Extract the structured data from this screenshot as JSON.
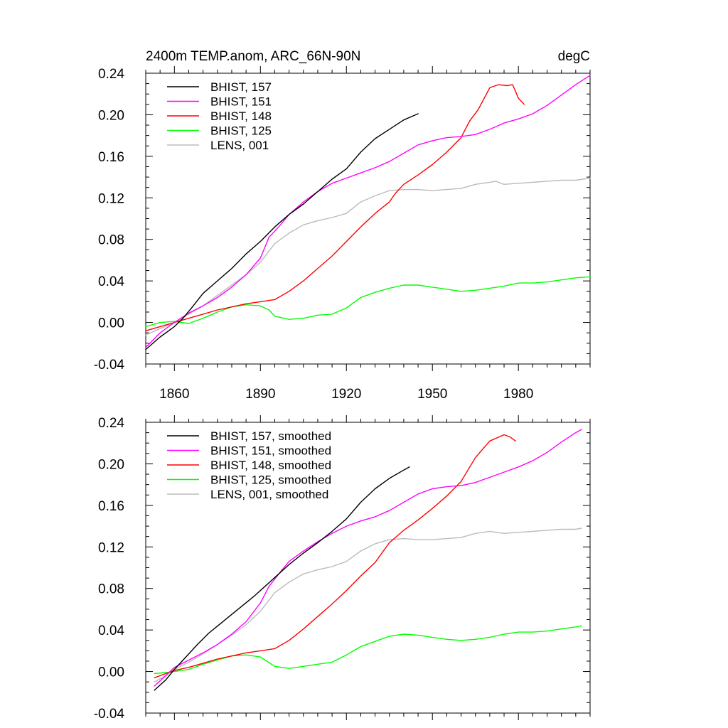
{
  "chart_data": [
    {
      "type": "line",
      "title": "2400m TEMP.anom, ARC_66N-90N",
      "units": "degC",
      "xlabel": "",
      "ylabel": "",
      "xlim": [
        1850,
        2005
      ],
      "ylim": [
        -0.04,
        0.24
      ],
      "x_ticks": [
        1860,
        1890,
        1920,
        1950,
        1980
      ],
      "x_tick_labels": [
        "1860",
        "1890",
        "1920",
        "1950",
        "1980"
      ],
      "y_ticks": [
        -0.04,
        0.0,
        0.04,
        0.08,
        0.12,
        0.16,
        0.2,
        0.24
      ],
      "y_tick_labels": [
        "-0.04",
        "0.00",
        "0.04",
        "0.08",
        "0.12",
        "0.16",
        "0.20",
        "0.24"
      ],
      "legend_position": "top-left",
      "series": [
        {
          "name": "BHIST, 157",
          "color": "#000000",
          "x": [
            1850,
            1855,
            1860,
            1863,
            1866,
            1870,
            1875,
            1880,
            1885,
            1890,
            1895,
            1900,
            1905,
            1910,
            1915,
            1920,
            1925,
            1930,
            1935,
            1940,
            1945
          ],
          "y": [
            -0.026,
            -0.014,
            -0.004,
            0.004,
            0.014,
            0.028,
            0.04,
            0.052,
            0.066,
            0.078,
            0.092,
            0.104,
            0.114,
            0.126,
            0.138,
            0.148,
            0.164,
            0.177,
            0.186,
            0.195,
            0.201
          ]
        },
        {
          "name": "BHIST, 151",
          "color": "#ff00ff",
          "x": [
            1850,
            1855,
            1860,
            1865,
            1870,
            1875,
            1880,
            1885,
            1890,
            1893,
            1897,
            1900,
            1905,
            1910,
            1915,
            1920,
            1925,
            1930,
            1935,
            1940,
            1945,
            1950,
            1955,
            1960,
            1965,
            1970,
            1975,
            1980,
            1985,
            1990,
            1995,
            2000,
            2005
          ],
          "y": [
            -0.024,
            -0.01,
            0.0,
            0.009,
            0.016,
            0.024,
            0.034,
            0.046,
            0.062,
            0.082,
            0.094,
            0.104,
            0.116,
            0.126,
            0.134,
            0.139,
            0.144,
            0.149,
            0.155,
            0.163,
            0.171,
            0.175,
            0.178,
            0.179,
            0.181,
            0.186,
            0.192,
            0.196,
            0.201,
            0.209,
            0.219,
            0.229,
            0.238
          ]
        },
        {
          "name": "BHIST, 148",
          "color": "#ff0000",
          "x": [
            1850,
            1855,
            1860,
            1865,
            1870,
            1875,
            1880,
            1885,
            1890,
            1895,
            1900,
            1905,
            1910,
            1915,
            1920,
            1925,
            1930,
            1935,
            1937,
            1940,
            1945,
            1950,
            1955,
            1960,
            1963,
            1966,
            1970,
            1973,
            1976,
            1978,
            1980,
            1982
          ],
          "y": [
            -0.008,
            -0.004,
            0.0,
            0.004,
            0.008,
            0.012,
            0.015,
            0.018,
            0.02,
            0.022,
            0.03,
            0.04,
            0.052,
            0.064,
            0.078,
            0.092,
            0.105,
            0.116,
            0.124,
            0.133,
            0.142,
            0.152,
            0.164,
            0.178,
            0.194,
            0.205,
            0.226,
            0.229,
            0.228,
            0.229,
            0.216,
            0.21
          ]
        },
        {
          "name": "BHIST, 125",
          "color": "#00ff00",
          "x": [
            1850,
            1855,
            1860,
            1865,
            1870,
            1875,
            1880,
            1885,
            1890,
            1893,
            1895,
            1900,
            1905,
            1910,
            1915,
            1920,
            1925,
            1930,
            1935,
            1940,
            1945,
            1950,
            1955,
            1960,
            1965,
            1970,
            1975,
            1980,
            1985,
            1990,
            1995,
            2000,
            2005
          ],
          "y": [
            -0.004,
            0.0,
            0.001,
            -0.001,
            0.004,
            0.01,
            0.015,
            0.017,
            0.016,
            0.012,
            0.006,
            0.003,
            0.004,
            0.007,
            0.008,
            0.014,
            0.024,
            0.029,
            0.033,
            0.036,
            0.036,
            0.034,
            0.032,
            0.03,
            0.031,
            0.033,
            0.035,
            0.038,
            0.038,
            0.039,
            0.041,
            0.043,
            0.044
          ]
        },
        {
          "name": "LENS, 001",
          "color": "#bbbbbb",
          "x": [
            1850,
            1855,
            1860,
            1865,
            1870,
            1875,
            1880,
            1885,
            1890,
            1895,
            1900,
            1905,
            1910,
            1915,
            1920,
            1925,
            1930,
            1935,
            1940,
            1945,
            1950,
            1955,
            1960,
            1965,
            1970,
            1972,
            1975,
            1980,
            1985,
            1990,
            1995,
            2000,
            2005
          ],
          "y": [
            -0.012,
            -0.006,
            0.0,
            0.008,
            0.016,
            0.026,
            0.036,
            0.046,
            0.058,
            0.076,
            0.086,
            0.094,
            0.098,
            0.101,
            0.105,
            0.116,
            0.122,
            0.127,
            0.128,
            0.128,
            0.127,
            0.128,
            0.129,
            0.133,
            0.135,
            0.136,
            0.133,
            0.134,
            0.135,
            0.136,
            0.137,
            0.137,
            0.139
          ]
        }
      ]
    },
    {
      "type": "line",
      "title": "",
      "xlabel": "",
      "ylabel": "",
      "xlim": [
        1850,
        2005
      ],
      "ylim": [
        -0.04,
        0.24
      ],
      "x_ticks": [
        1860,
        1890,
        1920,
        1950,
        1980
      ],
      "x_tick_labels": [],
      "y_ticks": [
        -0.04,
        0.0,
        0.04,
        0.08,
        0.12,
        0.16,
        0.2,
        0.24
      ],
      "y_tick_labels": [
        "-0.04",
        "0.00",
        "0.04",
        "0.08",
        "0.12",
        "0.16",
        "0.20",
        "0.24"
      ],
      "legend_position": "top-left",
      "series": [
        {
          "name": "BHIST, 157, smoothed",
          "color": "#000000",
          "x": [
            1853,
            1857,
            1860,
            1864,
            1868,
            1872,
            1876,
            1880,
            1884,
            1888,
            1892,
            1896,
            1900,
            1905,
            1910,
            1915,
            1920,
            1925,
            1930,
            1935,
            1940,
            1942
          ],
          "y": [
            -0.018,
            -0.008,
            0.002,
            0.014,
            0.026,
            0.037,
            0.046,
            0.055,
            0.064,
            0.073,
            0.083,
            0.093,
            0.103,
            0.114,
            0.124,
            0.135,
            0.147,
            0.163,
            0.176,
            0.186,
            0.194,
            0.197
          ]
        },
        {
          "name": "BHIST, 151, smoothed",
          "color": "#ff00ff",
          "x": [
            1853,
            1857,
            1860,
            1865,
            1870,
            1875,
            1880,
            1885,
            1890,
            1893,
            1897,
            1900,
            1905,
            1910,
            1915,
            1920,
            1925,
            1930,
            1935,
            1940,
            1945,
            1950,
            1955,
            1960,
            1965,
            1970,
            1975,
            1980,
            1985,
            1990,
            1995,
            2000,
            2002
          ],
          "y": [
            -0.014,
            -0.004,
            0.004,
            0.011,
            0.018,
            0.026,
            0.036,
            0.048,
            0.066,
            0.082,
            0.096,
            0.106,
            0.116,
            0.125,
            0.133,
            0.14,
            0.145,
            0.149,
            0.155,
            0.163,
            0.171,
            0.176,
            0.178,
            0.179,
            0.182,
            0.187,
            0.192,
            0.197,
            0.203,
            0.211,
            0.221,
            0.23,
            0.233
          ]
        },
        {
          "name": "BHIST, 148, smoothed",
          "color": "#ff0000",
          "x": [
            1853,
            1857,
            1860,
            1865,
            1870,
            1875,
            1880,
            1885,
            1890,
            1895,
            1900,
            1905,
            1910,
            1915,
            1920,
            1925,
            1930,
            1935,
            1940,
            1945,
            1950,
            1955,
            1960,
            1965,
            1970,
            1975,
            1977,
            1979
          ],
          "y": [
            -0.006,
            -0.002,
            0.001,
            0.004,
            0.008,
            0.012,
            0.015,
            0.018,
            0.02,
            0.022,
            0.03,
            0.041,
            0.053,
            0.065,
            0.078,
            0.092,
            0.105,
            0.124,
            0.136,
            0.146,
            0.157,
            0.169,
            0.183,
            0.206,
            0.222,
            0.228,
            0.226,
            0.222
          ]
        },
        {
          "name": "BHIST, 125, smoothed",
          "color": "#00ff00",
          "x": [
            1853,
            1857,
            1860,
            1865,
            1870,
            1875,
            1880,
            1885,
            1890,
            1895,
            1900,
            1905,
            1910,
            1915,
            1920,
            1925,
            1930,
            1935,
            1940,
            1945,
            1950,
            1955,
            1960,
            1965,
            1970,
            1975,
            1980,
            1985,
            1990,
            1995,
            2000,
            2002
          ],
          "y": [
            -0.002,
            -0.001,
            0.0,
            0.002,
            0.007,
            0.011,
            0.015,
            0.016,
            0.014,
            0.005,
            0.003,
            0.005,
            0.007,
            0.009,
            0.016,
            0.024,
            0.029,
            0.034,
            0.036,
            0.035,
            0.033,
            0.031,
            0.03,
            0.031,
            0.033,
            0.036,
            0.038,
            0.038,
            0.039,
            0.041,
            0.043,
            0.044
          ]
        },
        {
          "name": "LENS, 001, smoothed",
          "color": "#bbbbbb",
          "x": [
            1853,
            1857,
            1860,
            1865,
            1870,
            1875,
            1880,
            1885,
            1890,
            1895,
            1900,
            1905,
            1910,
            1915,
            1920,
            1925,
            1930,
            1935,
            1940,
            1945,
            1950,
            1955,
            1960,
            1965,
            1970,
            1975,
            1980,
            1985,
            1990,
            1995,
            2000,
            2002
          ],
          "y": [
            -0.01,
            -0.004,
            0.002,
            0.009,
            0.017,
            0.026,
            0.035,
            0.045,
            0.058,
            0.076,
            0.086,
            0.094,
            0.098,
            0.101,
            0.106,
            0.116,
            0.123,
            0.127,
            0.128,
            0.127,
            0.127,
            0.128,
            0.129,
            0.133,
            0.135,
            0.133,
            0.134,
            0.135,
            0.136,
            0.137,
            0.137,
            0.138
          ]
        }
      ]
    }
  ]
}
